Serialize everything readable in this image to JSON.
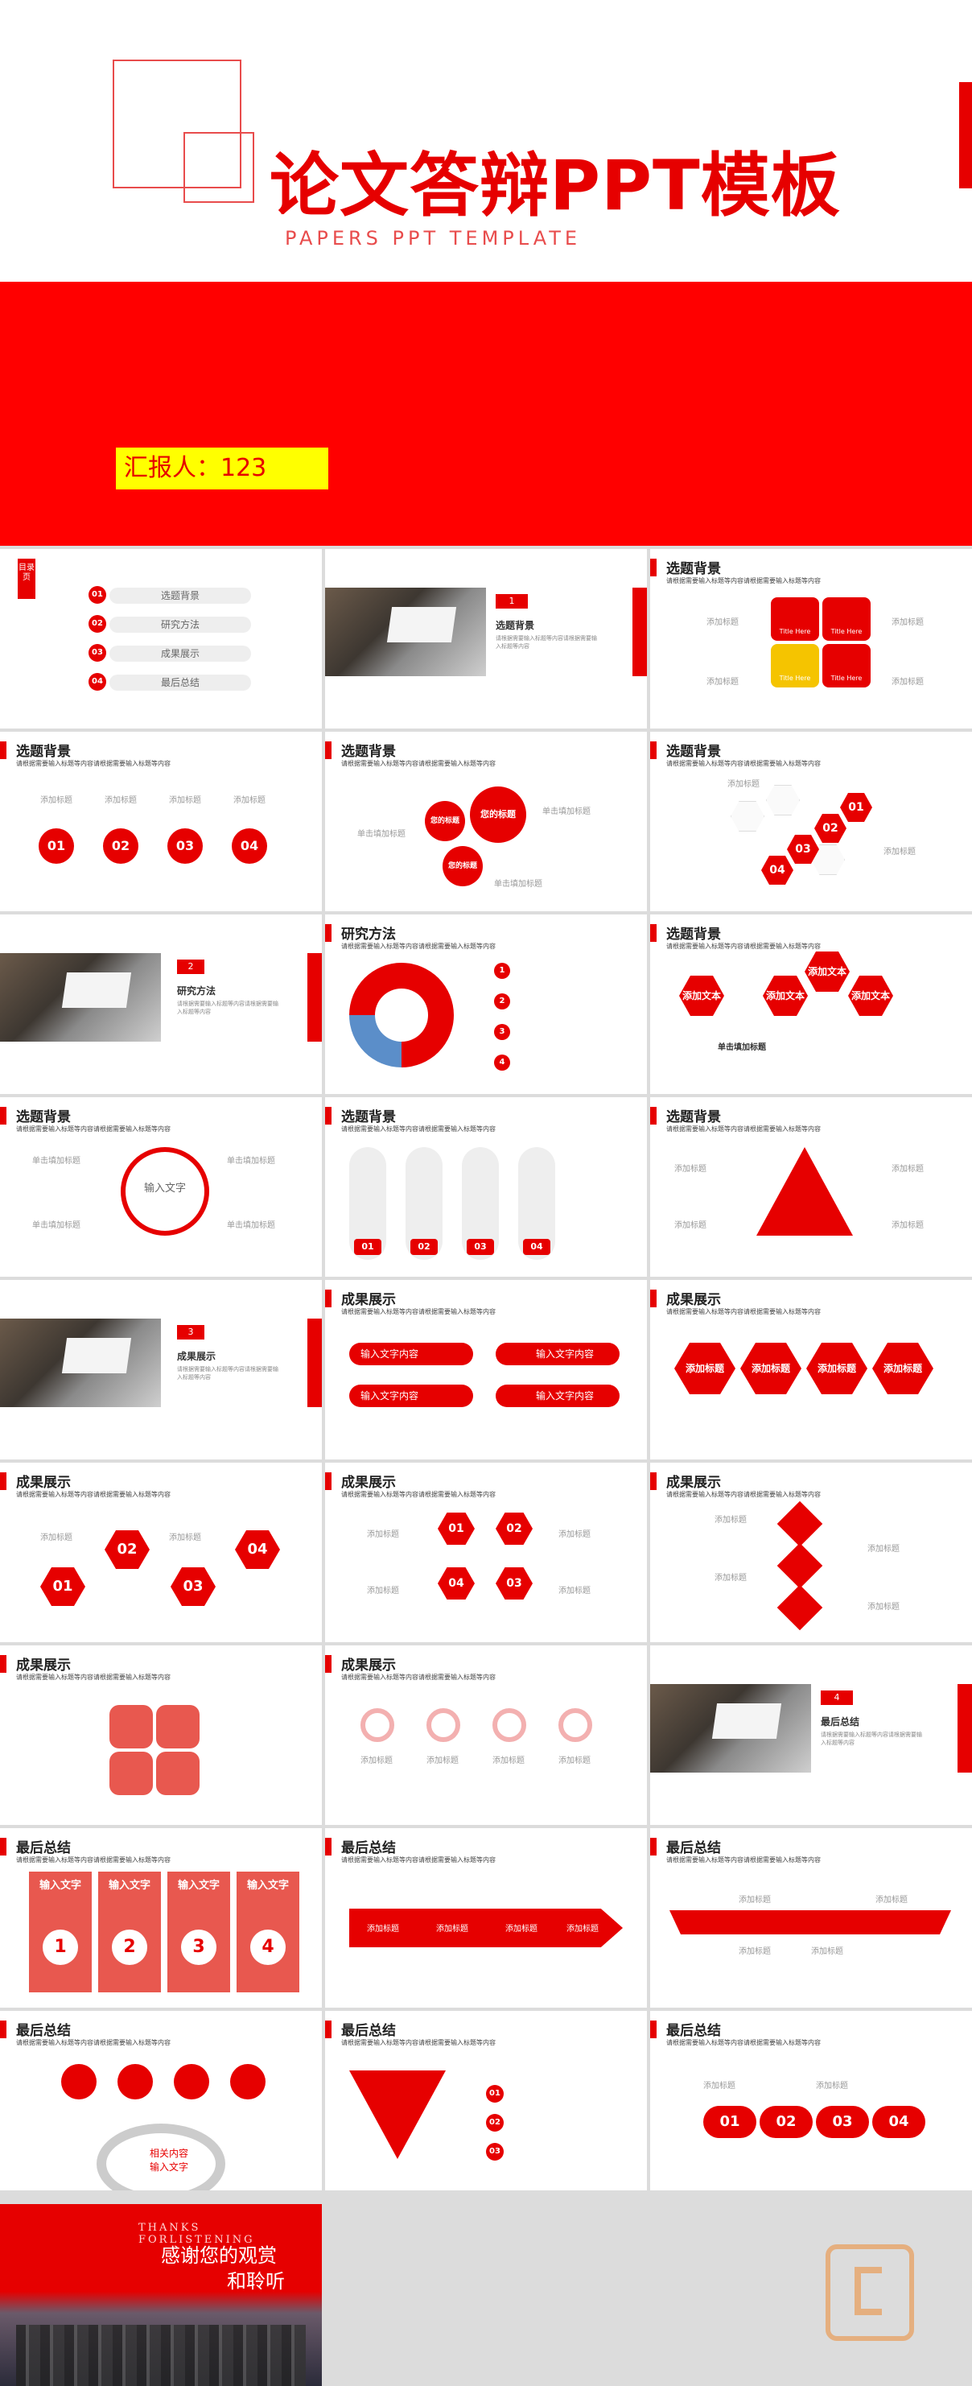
{
  "cover": {
    "title": "论文答辩PPT模板",
    "subtitle": "PAPERS PPT TEMPLATE",
    "reporter": "汇报人：123"
  },
  "common": {
    "desc": "请根据需要输入标题等内容请根据需要输入标题等内容",
    "add_title": "添加标题",
    "click_add": "单击填加标题",
    "input_content": "输入文字内容",
    "input_text": "输入文字",
    "add_text": "添加文本",
    "title_here": "Title Here"
  },
  "toc": {
    "badge": "目录页",
    "items": [
      {
        "num": "01",
        "label": "选题背景"
      },
      {
        "num": "02",
        "label": "研究方法"
      },
      {
        "num": "03",
        "label": "成果展示"
      },
      {
        "num": "04",
        "label": "最后总结"
      }
    ]
  },
  "sections": [
    {
      "num": "1",
      "title": "选题背景"
    },
    {
      "num": "2",
      "title": "研究方法"
    },
    {
      "num": "3",
      "title": "成果展示"
    },
    {
      "num": "4",
      "title": "最后总结"
    }
  ],
  "slide_titles": {
    "bg": "选题背景",
    "method": "研究方法",
    "result": "成果展示",
    "summary": "最后总结"
  },
  "steps": [
    "01",
    "02",
    "03",
    "04"
  ],
  "your_title": "您的标题",
  "input_ring": "输入文字",
  "big_label": "相关内容\n输入文字",
  "ending": {
    "en": "THANKS FORLISTENING",
    "cn1": "感谢您的观赏",
    "cn2": "和聆听"
  }
}
